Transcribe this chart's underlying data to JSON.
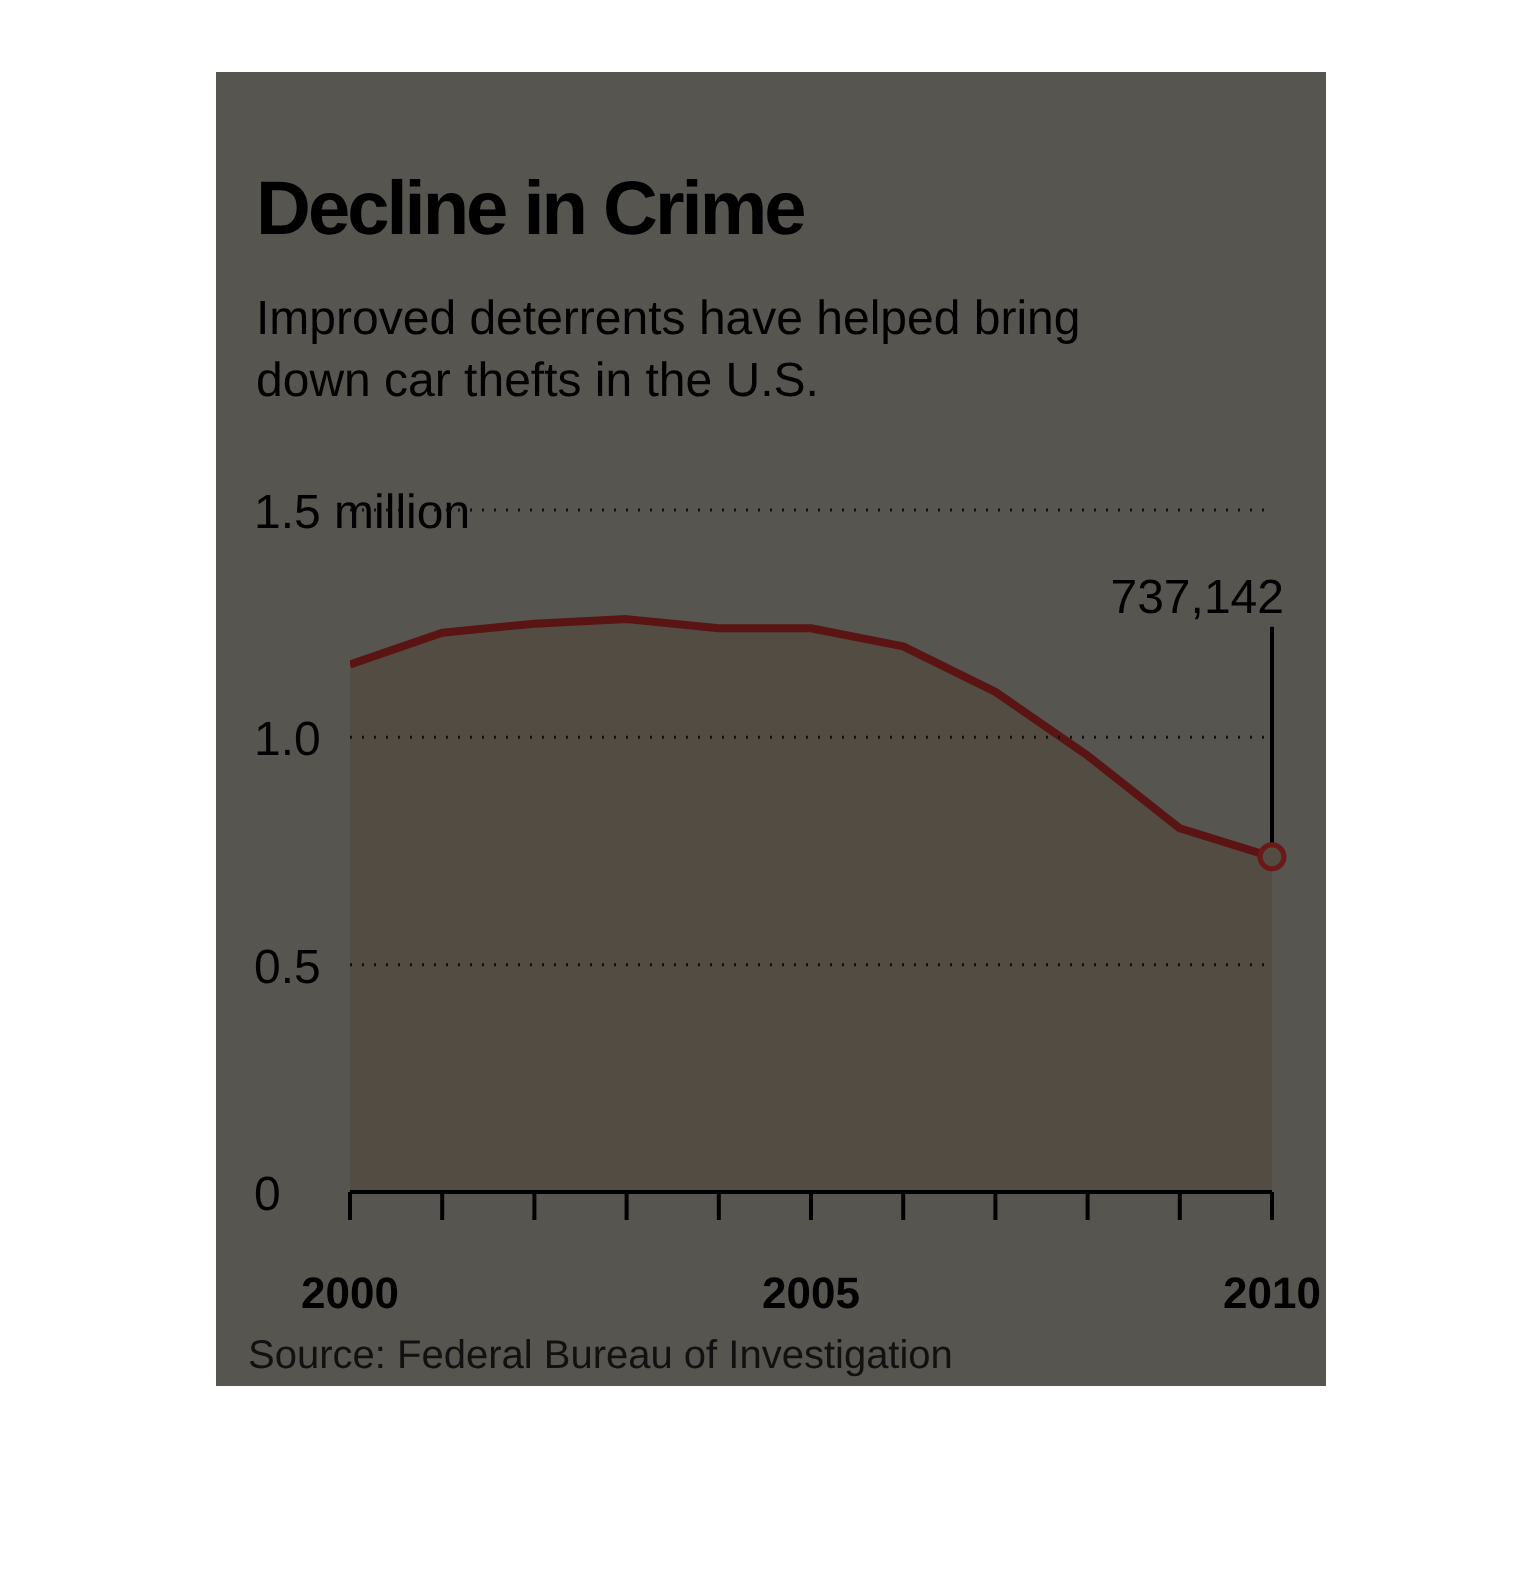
{
  "chart_data": {
    "type": "area",
    "title": "Decline in Crime",
    "subtitle": "Improved deterrents have helped bring down car thefts in the U.S.",
    "x": [
      2000,
      2001,
      2002,
      2003,
      2004,
      2005,
      2006,
      2007,
      2008,
      2009,
      2010
    ],
    "series": [
      {
        "color": "#5a1414",
        "values": [
          1.16,
          1.23,
          1.25,
          1.26,
          1.24,
          1.24,
          1.2,
          1.1,
          0.96,
          0.8,
          0.737142
        ]
      }
    ],
    "xlim": [
      2000,
      2010
    ],
    "xticks": [
      2000,
      {
        "value": 2001,
        "label": null
      },
      {
        "value": 2002,
        "label": null
      },
      {
        "value": 2003,
        "label": null
      },
      {
        "value": 2004,
        "label": null
      },
      2005,
      {
        "value": 2006,
        "label": null
      },
      {
        "value": 2007,
        "label": null
      },
      {
        "value": 2008,
        "label": null
      },
      {
        "value": 2009,
        "label": null
      },
      2010
    ],
    "ylim": [
      0,
      1.5
    ],
    "yticks": [
      0,
      {
        "value": 0.5,
        "label": "0.5"
      },
      {
        "value": 1,
        "label": "1.0"
      },
      {
        "value": 1.5,
        "label": "1.5 million"
      }
    ],
    "grid": "y",
    "marker": "none",
    "line_style": "solid",
    "annotations": [
      {
        "text": "737,142",
        "x": 2010,
        "y": 0.737142
      },
      "Source: Federal Bureau of Investigation"
    ]
  }
}
